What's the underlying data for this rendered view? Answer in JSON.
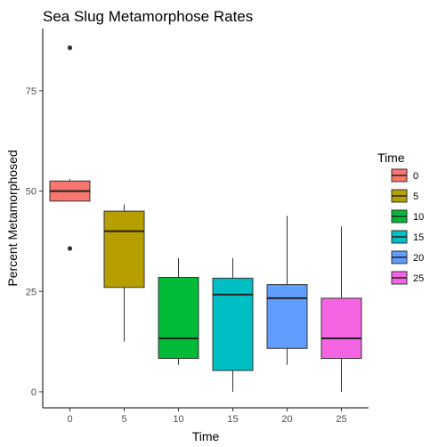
{
  "chart_data": {
    "type": "box",
    "title": "Sea Slug Metamorphose Rates",
    "xlabel": "Time",
    "ylabel": "Percent Metamorphosed",
    "categories": [
      "0",
      "5",
      "10",
      "15",
      "20",
      "25"
    ],
    "ylim": [
      -4,
      90.5
    ],
    "yticks": [
      0,
      25,
      50,
      75
    ],
    "grid": false,
    "legend": {
      "title": "Time",
      "position": "right"
    },
    "boxes": [
      {
        "category": "0",
        "color": "#F8766D",
        "whisker_low": 47.5,
        "q1": 47.5,
        "median": 50.0,
        "q3": 52.5,
        "whisker_high": 53.0,
        "outliers": [
          85.7,
          35.7
        ]
      },
      {
        "category": "5",
        "color": "#B79F00",
        "whisker_low": 12.5,
        "q1": 26.0,
        "median": 40.0,
        "q3": 45.0,
        "whisker_high": 46.7,
        "outliers": []
      },
      {
        "category": "10",
        "color": "#00BA38",
        "whisker_low": 6.7,
        "q1": 8.3,
        "median": 13.3,
        "q3": 28.5,
        "whisker_high": 33.3,
        "outliers": []
      },
      {
        "category": "15",
        "color": "#00BFC4",
        "whisker_low": 0.0,
        "q1": 5.3,
        "median": 24.2,
        "q3": 28.3,
        "whisker_high": 33.3,
        "outliers": []
      },
      {
        "category": "20",
        "color": "#619CFF",
        "whisker_low": 6.7,
        "q1": 10.8,
        "median": 23.3,
        "q3": 26.7,
        "whisker_high": 43.8,
        "outliers": []
      },
      {
        "category": "25",
        "color": "#F564E3",
        "whisker_low": 0.0,
        "q1": 8.3,
        "median": 13.3,
        "q3": 23.3,
        "whisker_high": 41.2,
        "outliers": []
      }
    ]
  }
}
